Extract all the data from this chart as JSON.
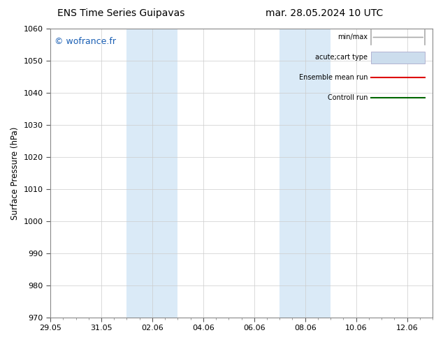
{
  "title_left": "ENS Time Series Guipavas",
  "title_right": "mar. 28.05.2024 10 UTC",
  "ylabel": "Surface Pressure (hPa)",
  "ylim": [
    970,
    1060
  ],
  "yticks": [
    970,
    980,
    990,
    1000,
    1010,
    1020,
    1030,
    1040,
    1050,
    1060
  ],
  "xtick_labels": [
    "29.05",
    "31.05",
    "02.06",
    "04.06",
    "06.06",
    "08.06",
    "10.06",
    "12.06"
  ],
  "xtick_positions": [
    0,
    2,
    4,
    6,
    8,
    10,
    12,
    14
  ],
  "x_min": 0,
  "x_max": 15,
  "shaded_regions": [
    {
      "x_start": 3.0,
      "x_end": 5.0,
      "color": "#daeaf7"
    },
    {
      "x_start": 9.0,
      "x_end": 11.0,
      "color": "#daeaf7"
    }
  ],
  "watermark": "© wofrance.fr",
  "watermark_color": "#1a5fb4",
  "bg_color": "#ffffff",
  "legend_items": [
    {
      "label": "min/max",
      "color": "#aaaaaa",
      "style": "caps"
    },
    {
      "label": "acute;cart type",
      "color": "#ccdded",
      "style": "box"
    },
    {
      "label": "Ensemble mean run",
      "color": "#dd0000",
      "style": "line"
    },
    {
      "label": "Controll run",
      "color": "#006600",
      "style": "line"
    }
  ],
  "font_size_title": 10,
  "font_size_axis": 8,
  "font_size_legend": 7,
  "font_size_watermark": 9,
  "grid_color": "#cccccc",
  "spine_color": "#888888"
}
